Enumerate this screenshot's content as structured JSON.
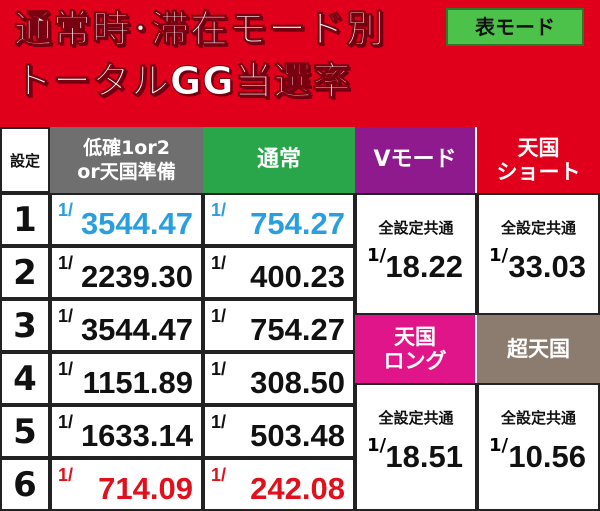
{
  "title": {
    "line1": "通常時･滞在モード別",
    "line2": "トータルGG当選率"
  },
  "badge": "表モード",
  "headers": {
    "setting": "設定",
    "low_line1": "低確1or2",
    "low_line2": "or天国準備",
    "normal": "通常",
    "v_mode": "Vモード",
    "tengoku_short_line1": "天国",
    "tengoku_short_line2": "ショート",
    "tengoku_long_line1": "天国",
    "tengoku_long_line2": "ロング",
    "cho_tengoku": "超天国"
  },
  "fraction_prefix": "1/",
  "rows": [
    {
      "setting": "1",
      "low": "3544.47",
      "normal": "754.27"
    },
    {
      "setting": "2",
      "low": "2239.30",
      "normal": "400.23"
    },
    {
      "setting": "3",
      "low": "3544.47",
      "normal": "754.27"
    },
    {
      "setting": "4",
      "low": "1151.89",
      "normal": "308.50"
    },
    {
      "setting": "5",
      "low": "1633.14",
      "normal": "503.48"
    },
    {
      "setting": "6",
      "low": "714.09",
      "normal": "242.08"
    }
  ],
  "common_label": "全設定共通",
  "merged": {
    "v_mode": "18.22",
    "tengoku_short": "33.03",
    "tengoku_long": "18.51",
    "cho_tengoku": "10.56"
  },
  "colors": {
    "red": "#e0001b",
    "green": "#4cc24a",
    "gray": "#6f6f6f",
    "green_header": "#2aa64a",
    "purple": "#8e1a8e",
    "magenta": "#e0158a",
    "brown": "#8c7c70",
    "highlight_blue": "#2a9fe0",
    "highlight_red": "#e0101c"
  }
}
